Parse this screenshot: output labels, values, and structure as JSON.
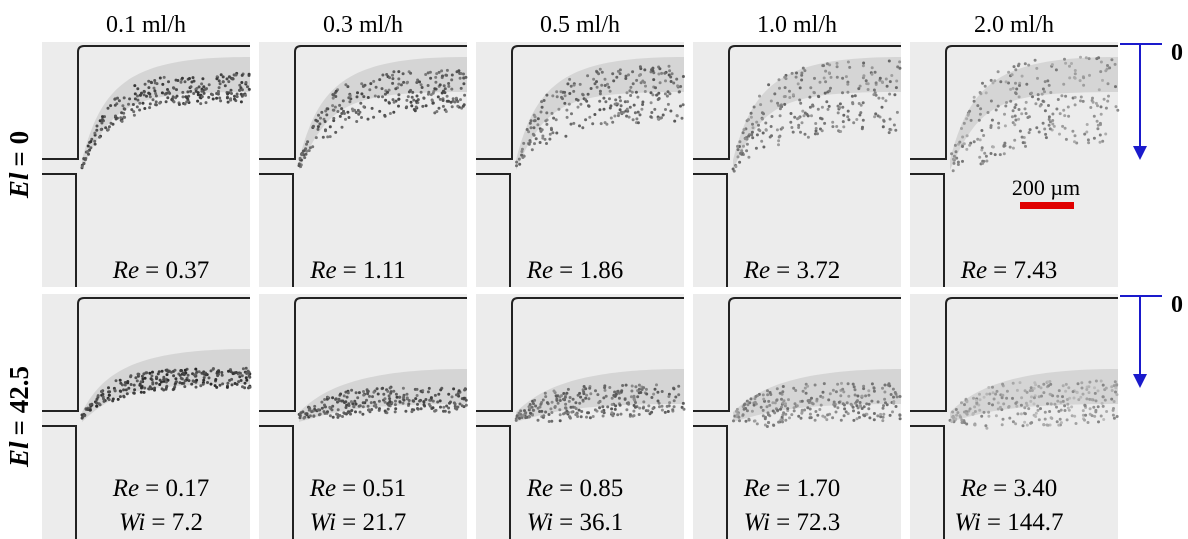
{
  "column_headers": [
    "0.1 ml/h",
    "0.3 ml/h",
    "0.5 ml/h",
    "1.0 ml/h",
    "2.0 ml/h"
  ],
  "rows": [
    {
      "label_symbol": "El",
      "label_value": "= 0",
      "cells": [
        {
          "re_symbol": "Re",
          "re": "= 0.37"
        },
        {
          "re_symbol": "Re",
          "re": "= 1.11"
        },
        {
          "re_symbol": "Re",
          "re": "= 1.86"
        },
        {
          "re_symbol": "Re",
          "re": "= 3.72"
        },
        {
          "re_symbol": "Re",
          "re": "= 7.43"
        }
      ]
    },
    {
      "label_symbol": "El",
      "label_value": "= 42.5",
      "cells": [
        {
          "re_symbol": "Re",
          "re": "= 0.17",
          "wi_symbol": "Wi",
          "wi": "= 7.2"
        },
        {
          "re_symbol": "Re",
          "re": "= 0.51",
          "wi_symbol": "Wi",
          "wi": "= 21.7"
        },
        {
          "re_symbol": "Re",
          "re": "= 0.85",
          "wi_symbol": "Wi",
          "wi": "= 36.1"
        },
        {
          "re_symbol": "Re",
          "re": "= 1.70",
          "wi_symbol": "Wi",
          "wi": "= 72.3"
        },
        {
          "re_symbol": "Re",
          "re": "= 3.40",
          "wi_symbol": "Wi",
          "wi": "= 144.7"
        }
      ]
    }
  ],
  "scale_bar": "200 µm",
  "arrow_labels": [
    "0",
    "0"
  ]
}
